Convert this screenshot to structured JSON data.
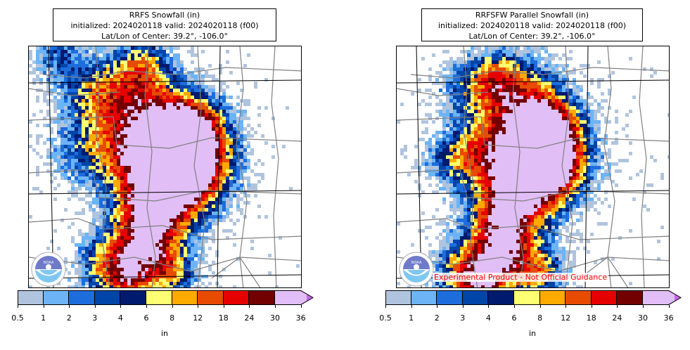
{
  "panels": [
    {
      "title_line1": "RRFS Snowfall (in)",
      "title_line2": "initialized: 2024020118 valid: 2024020118 (f00)",
      "title_line3": "Lat/Lon of Center: 39.2°, -106.0°",
      "logo": "noaa-logo",
      "note": ""
    },
    {
      "title_line1": "RRFSFW Parallel Snowfall (in)",
      "title_line2": "initialized: 2024020118 valid: 2024020118 (f00)",
      "title_line3": "Lat/Lon of Center: 39.2°, -106.0°",
      "logo": "noaa-logo",
      "note": "Experimental Product - Not Official Guidance"
    }
  ],
  "colorbar": {
    "unit": "in",
    "tick_labels": [
      "0.5",
      "1",
      "2",
      "3",
      "4",
      "6",
      "8",
      "12",
      "18",
      "24",
      "30",
      "36"
    ],
    "colors": [
      "#b0c4de",
      "#6cb4f5",
      "#1e6ddc",
      "#0045a8",
      "#001a6e",
      "#ffff73",
      "#ffaa00",
      "#e64b00",
      "#e60000",
      "#730000",
      "#e1bef5"
    ],
    "extend_color": "#c864e6"
  },
  "map": {
    "border_color": "#000000",
    "county_color": "#808080",
    "state_color": "#000000"
  }
}
